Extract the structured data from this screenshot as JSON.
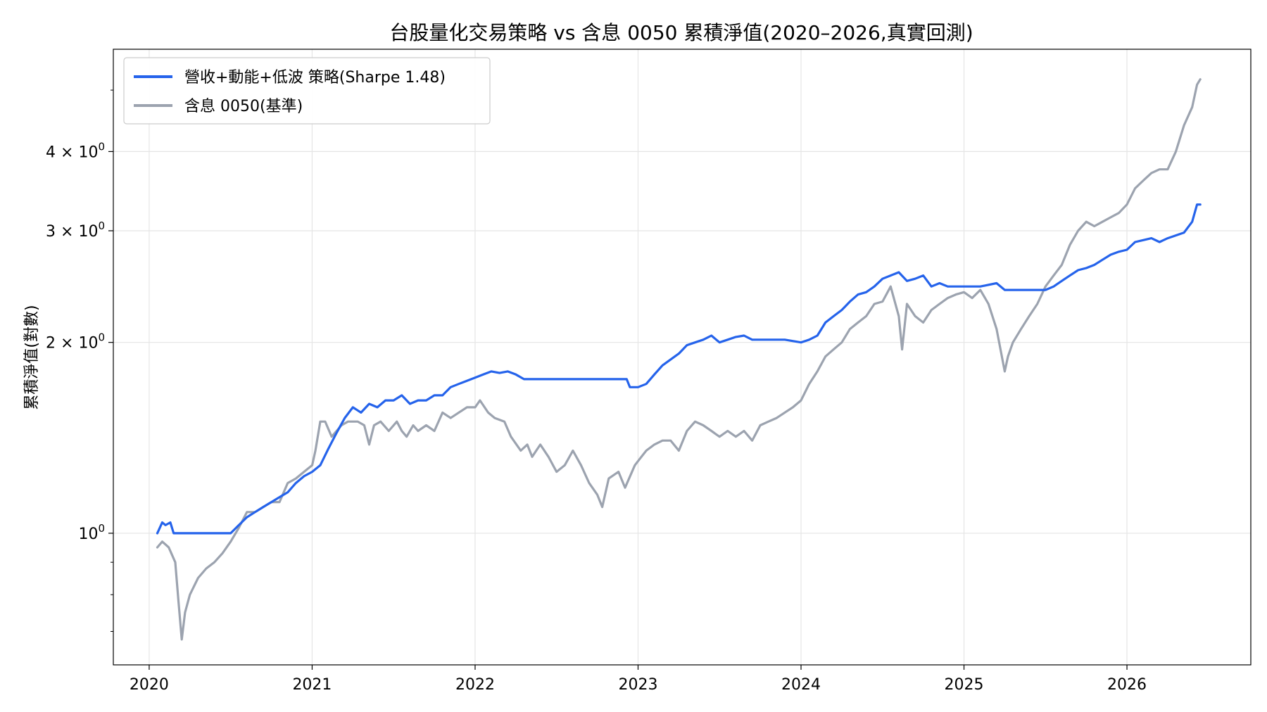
{
  "chart_data": {
    "type": "line",
    "title": "台股量化交易策略 vs 含息 0050 累積淨值(2020–2026,真實回測)",
    "xlabel": "",
    "ylabel": "累積淨值(對數)",
    "yscale": "log",
    "ylim": [
      0.62,
      5.8
    ],
    "xlim": [
      2019.78,
      2026.76
    ],
    "x_ticks": [
      2020,
      2021,
      2022,
      2023,
      2024,
      2025,
      2026
    ],
    "x_tick_labels": [
      "2020",
      "2021",
      "2022",
      "2023",
      "2024",
      "2025",
      "2026"
    ],
    "y_major_ticks": [
      1,
      2,
      3,
      4
    ],
    "y_tick_labels": [
      {
        "base": "10",
        "exp": "0"
      },
      {
        "base": "2 × 10",
        "exp": "0"
      },
      {
        "base": "3 × 10",
        "exp": "0"
      },
      {
        "base": "4 × 10",
        "exp": "0"
      }
    ],
    "y_minor_ticks": [
      0.7,
      0.8,
      0.9,
      5
    ],
    "grid": true,
    "legend_position": "top-left",
    "series": [
      {
        "name": "營收+動能+低波 策略(Sharpe 1.48)",
        "color": "#2563eb",
        "x": [
          2020.05,
          2020.08,
          2020.1,
          2020.13,
          2020.15,
          2020.5,
          2020.55,
          2020.6,
          2020.65,
          2020.7,
          2020.75,
          2020.8,
          2020.85,
          2020.9,
          2020.95,
          2021.0,
          2021.05,
          2021.1,
          2021.15,
          2021.2,
          2021.25,
          2021.3,
          2021.35,
          2021.4,
          2021.45,
          2021.5,
          2021.55,
          2021.6,
          2021.65,
          2021.7,
          2021.75,
          2021.8,
          2021.85,
          2021.9,
          2021.95,
          2022.0,
          2022.05,
          2022.1,
          2022.15,
          2022.2,
          2022.25,
          2022.3,
          2022.93,
          2022.95,
          2023.0,
          2023.05,
          2023.1,
          2023.15,
          2023.2,
          2023.25,
          2023.3,
          2023.35,
          2023.4,
          2023.45,
          2023.5,
          2023.55,
          2023.6,
          2023.65,
          2023.7,
          2023.75,
          2023.8,
          2023.9,
          2024.0,
          2024.05,
          2024.1,
          2024.15,
          2024.2,
          2024.25,
          2024.3,
          2024.35,
          2024.4,
          2024.45,
          2024.5,
          2024.55,
          2024.6,
          2024.65,
          2024.7,
          2024.75,
          2024.8,
          2024.85,
          2024.9,
          2025.0,
          2025.1,
          2025.2,
          2025.25,
          2025.5,
          2025.55,
          2025.6,
          2025.65,
          2025.7,
          2025.75,
          2025.8,
          2025.85,
          2025.9,
          2025.95,
          2026.0,
          2026.05,
          2026.1,
          2026.15,
          2026.2,
          2026.25,
          2026.3,
          2026.35,
          2026.4,
          2026.43,
          2026.45
        ],
        "y": [
          1.0,
          1.04,
          1.03,
          1.04,
          1.0,
          1.0,
          1.03,
          1.06,
          1.08,
          1.1,
          1.12,
          1.14,
          1.16,
          1.2,
          1.23,
          1.25,
          1.28,
          1.36,
          1.44,
          1.52,
          1.58,
          1.55,
          1.6,
          1.58,
          1.62,
          1.62,
          1.65,
          1.6,
          1.62,
          1.62,
          1.65,
          1.65,
          1.7,
          1.72,
          1.74,
          1.76,
          1.78,
          1.8,
          1.79,
          1.8,
          1.78,
          1.75,
          1.75,
          1.7,
          1.7,
          1.72,
          1.78,
          1.84,
          1.88,
          1.92,
          1.98,
          2.0,
          2.02,
          2.05,
          2.0,
          2.02,
          2.04,
          2.05,
          2.02,
          2.02,
          2.02,
          2.02,
          2.0,
          2.02,
          2.05,
          2.15,
          2.2,
          2.25,
          2.32,
          2.38,
          2.4,
          2.45,
          2.52,
          2.55,
          2.58,
          2.5,
          2.52,
          2.55,
          2.45,
          2.48,
          2.45,
          2.45,
          2.45,
          2.48,
          2.42,
          2.42,
          2.45,
          2.5,
          2.55,
          2.6,
          2.62,
          2.65,
          2.7,
          2.75,
          2.78,
          2.8,
          2.88,
          2.9,
          2.92,
          2.88,
          2.92,
          2.95,
          2.98,
          3.1,
          3.3,
          3.3
        ]
      },
      {
        "name": "含息 0050(基準)",
        "color": "#9ca3af",
        "x": [
          2020.05,
          2020.08,
          2020.12,
          2020.16,
          2020.18,
          2020.2,
          2020.22,
          2020.25,
          2020.3,
          2020.35,
          2020.4,
          2020.45,
          2020.5,
          2020.55,
          2020.6,
          2020.65,
          2020.7,
          2020.75,
          2020.8,
          2020.85,
          2020.9,
          2020.95,
          2021.0,
          2021.02,
          2021.05,
          2021.08,
          2021.12,
          2021.18,
          2021.22,
          2021.28,
          2021.32,
          2021.35,
          2021.38,
          2021.42,
          2021.47,
          2021.52,
          2021.55,
          2021.58,
          2021.62,
          2021.65,
          2021.7,
          2021.75,
          2021.8,
          2021.85,
          2021.9,
          2021.95,
          2022.0,
          2022.03,
          2022.08,
          2022.12,
          2022.18,
          2022.22,
          2022.28,
          2022.32,
          2022.35,
          2022.4,
          2022.45,
          2022.5,
          2022.55,
          2022.6,
          2022.65,
          2022.7,
          2022.75,
          2022.78,
          2022.82,
          2022.88,
          2022.92,
          2022.98,
          2023.0,
          2023.05,
          2023.1,
          2023.15,
          2023.2,
          2023.25,
          2023.3,
          2023.35,
          2023.4,
          2023.45,
          2023.5,
          2023.55,
          2023.6,
          2023.65,
          2023.7,
          2023.75,
          2023.8,
          2023.85,
          2023.9,
          2023.95,
          2024.0,
          2024.05,
          2024.1,
          2024.15,
          2024.2,
          2024.25,
          2024.3,
          2024.35,
          2024.4,
          2024.45,
          2024.5,
          2024.55,
          2024.6,
          2024.62,
          2024.65,
          2024.7,
          2024.75,
          2024.8,
          2024.85,
          2024.9,
          2024.95,
          2025.0,
          2025.05,
          2025.1,
          2025.15,
          2025.2,
          2025.25,
          2025.27,
          2025.3,
          2025.35,
          2025.4,
          2025.45,
          2025.5,
          2025.55,
          2025.6,
          2025.65,
          2025.7,
          2025.75,
          2025.8,
          2025.85,
          2025.9,
          2025.95,
          2026.0,
          2026.05,
          2026.1,
          2026.15,
          2026.2,
          2026.25,
          2026.3,
          2026.35,
          2026.4,
          2026.43,
          2026.45
        ],
        "y": [
          0.95,
          0.97,
          0.95,
          0.9,
          0.78,
          0.68,
          0.75,
          0.8,
          0.85,
          0.88,
          0.9,
          0.93,
          0.97,
          1.02,
          1.08,
          1.08,
          1.1,
          1.12,
          1.12,
          1.2,
          1.22,
          1.25,
          1.28,
          1.35,
          1.5,
          1.5,
          1.42,
          1.48,
          1.5,
          1.5,
          1.48,
          1.38,
          1.48,
          1.5,
          1.45,
          1.5,
          1.45,
          1.42,
          1.48,
          1.45,
          1.48,
          1.45,
          1.55,
          1.52,
          1.55,
          1.58,
          1.58,
          1.62,
          1.55,
          1.52,
          1.5,
          1.42,
          1.35,
          1.38,
          1.32,
          1.38,
          1.32,
          1.25,
          1.28,
          1.35,
          1.28,
          1.2,
          1.15,
          1.1,
          1.22,
          1.25,
          1.18,
          1.28,
          1.3,
          1.35,
          1.38,
          1.4,
          1.4,
          1.35,
          1.45,
          1.5,
          1.48,
          1.45,
          1.42,
          1.45,
          1.42,
          1.45,
          1.4,
          1.48,
          1.5,
          1.52,
          1.55,
          1.58,
          1.62,
          1.72,
          1.8,
          1.9,
          1.95,
          2.0,
          2.1,
          2.15,
          2.2,
          2.3,
          2.32,
          2.45,
          2.2,
          1.95,
          2.3,
          2.2,
          2.15,
          2.25,
          2.3,
          2.35,
          2.38,
          2.4,
          2.35,
          2.42,
          2.3,
          2.1,
          1.8,
          1.9,
          2.0,
          2.1,
          2.2,
          2.3,
          2.45,
          2.55,
          2.65,
          2.85,
          3.0,
          3.1,
          3.05,
          3.1,
          3.15,
          3.2,
          3.3,
          3.5,
          3.6,
          3.7,
          3.75,
          3.75,
          4.0,
          4.4,
          4.7,
          5.1,
          5.2
        ]
      }
    ]
  }
}
